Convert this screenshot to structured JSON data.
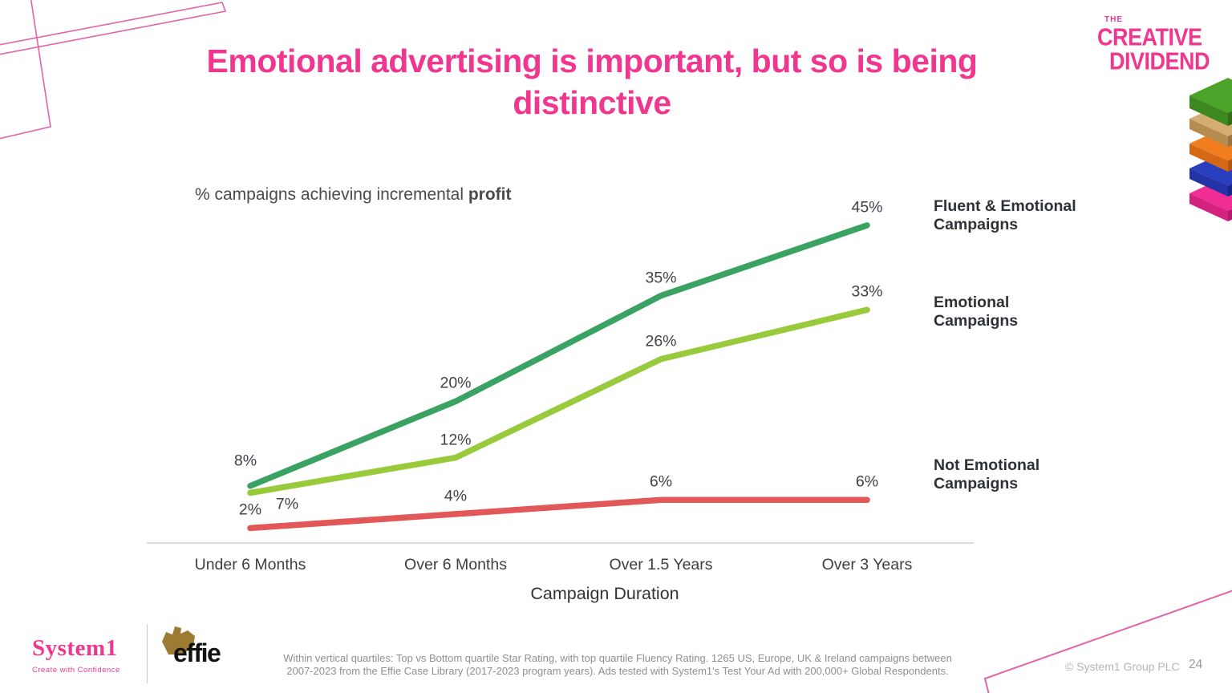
{
  "slide": {
    "title": "Emotional advertising is important, but so is being distinctive",
    "copyright": "© System1 Group PLC",
    "page_number": "24"
  },
  "logos": {
    "creative_dividend": {
      "the": "THE",
      "line1": "CREATIVE",
      "line2": "DIVIDEND"
    },
    "system1": {
      "name": "System1",
      "tagline": "Create with Confidence"
    },
    "effie": {
      "name": "effie"
    }
  },
  "chart_data": {
    "type": "line",
    "title": "% campaigns achieving incremental profit",
    "title_regular": "% campaigns achieving incremental ",
    "title_bold": "profit",
    "categories": [
      "Under 6 Months",
      "Over 6 Months",
      "Over 1.5 Years",
      "Over 3 Years"
    ],
    "xlabel": "Campaign Duration",
    "ylim": [
      0,
      50
    ],
    "grid": false,
    "legend_position": "right",
    "series": [
      {
        "name": "Fluent & Emotional Campaigns",
        "name_display": "Fluent & Emotional\nCampaigns",
        "color": "#3AA263",
        "values": [
          8,
          20,
          35,
          45
        ],
        "labels": [
          "8%",
          "20%",
          "35%",
          "45%"
        ]
      },
      {
        "name": "Emotional Campaigns",
        "name_display": "Emotional\nCampaigns",
        "color": "#99CA3C",
        "values": [
          7,
          12,
          26,
          33
        ],
        "labels": [
          "7%",
          "12%",
          "26%",
          "33%"
        ]
      },
      {
        "name": "Not Emotional Campaigns",
        "name_display": "Not Emotional\nCampaigns",
        "color": "#E25757",
        "values": [
          2,
          4,
          6,
          6
        ],
        "labels": [
          "2%",
          "4%",
          "6%",
          "6%"
        ]
      }
    ]
  },
  "footnote": {
    "line1": "Within vertical quartiles: Top vs Bottom quartile Star Rating, with top quartile Fluency Rating. 1265 US, Europe, UK & Ireland campaigns between",
    "line2": "2007-2023 from the Effie Case Library (2017-2023 program years). Ads tested with System1's Test Your Ad with 200,000+ Global Respondents."
  },
  "colors": {
    "accent_pink": "#F0378F",
    "decorative_outline_pink": "#E263A8",
    "series_fluent_emotional": "#3AA263",
    "series_emotional": "#99CA3C",
    "series_not_emotional": "#E25757",
    "axis_line": "#DBDBDB",
    "label_text": "#3F4449",
    "footnote_text": "#8F8F8F",
    "stack_green": "#4CA32A",
    "stack_tan": "#D5AC72",
    "stack_orange": "#F07E1E",
    "stack_blue": "#2A3EC0",
    "stack_pink": "#F02D95",
    "effie_brown": "#9E7B33"
  }
}
